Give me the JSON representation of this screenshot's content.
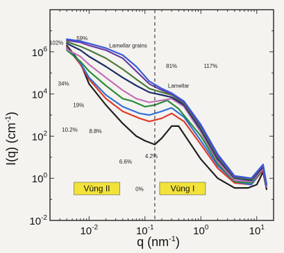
{
  "chart_data": {
    "type": "line",
    "log_x": true,
    "log_y": true,
    "xlabel": "q (nm",
    "xlabel_sup": "-1",
    "xlabel_end": ")",
    "ylabel": "I(q) (cm",
    "ylabel_sup": "-1",
    "ylabel_end": ")",
    "xlim": [
      0.002,
      20
    ],
    "ylim": [
      0.01,
      100000000
    ],
    "x_ticks": [
      {
        "value": 0.01,
        "base": "10",
        "exp": "-2"
      },
      {
        "value": 0.1,
        "base": "10",
        "exp": "-1"
      },
      {
        "value": 1,
        "base": "10",
        "exp": "0"
      },
      {
        "value": 10,
        "base": "10",
        "exp": "1"
      }
    ],
    "y_ticks": [
      {
        "value": 0.01,
        "base": "10",
        "exp": "-2"
      },
      {
        "value": 1,
        "base": "10",
        "exp": "0"
      },
      {
        "value": 100,
        "base": "10",
        "exp": "2"
      },
      {
        "value": 10000,
        "base": "10",
        "exp": "4"
      },
      {
        "value": 1000000,
        "base": "10",
        "exp": "6"
      }
    ],
    "divider_q": 0.15,
    "region_labels": [
      {
        "text": "Vùng II",
        "side": "left"
      },
      {
        "text": "Vùng I",
        "side": "right"
      }
    ],
    "annotations": [
      {
        "text": "102%",
        "x": 0.0026,
        "y": 2200000
      },
      {
        "text": "59%",
        "x": 0.0075,
        "y": 3600000
      },
      {
        "text": "Lamellar grains",
        "x": 0.05,
        "y": 1600000
      },
      {
        "text": "81%",
        "x": 0.3,
        "y": 170000
      },
      {
        "text": "117%",
        "x": 1.5,
        "y": 170000
      },
      {
        "text": "34%",
        "x": 0.0035,
        "y": 25000
      },
      {
        "text": "19%",
        "x": 0.0065,
        "y": 2400
      },
      {
        "text": "Lamellar",
        "x": 0.4,
        "y": 20000
      },
      {
        "text": "10.2%",
        "x": 0.0045,
        "y": 160
      },
      {
        "text": "8.8%",
        "x": 0.013,
        "y": 140
      },
      {
        "text": "6.6%",
        "x": 0.045,
        "y": 5
      },
      {
        "text": "4.2%",
        "x": 0.13,
        "y": 9
      },
      {
        "text": "0%",
        "x": 0.08,
        "y": 0.25
      }
    ],
    "series": [
      {
        "color": "#1f1f1f",
        "points": [
          [
            0.004,
            2000000
          ],
          [
            0.007,
            300000
          ],
          [
            0.01,
            30000
          ],
          [
            0.02,
            3000
          ],
          [
            0.04,
            400
          ],
          [
            0.07,
            100
          ],
          [
            0.1,
            60
          ],
          [
            0.15,
            40
          ],
          [
            0.2,
            80
          ],
          [
            0.3,
            300
          ],
          [
            0.4,
            300
          ],
          [
            0.6,
            60
          ],
          [
            1,
            8
          ],
          [
            2,
            1
          ],
          [
            4,
            0.35
          ],
          [
            7,
            0.35
          ],
          [
            10,
            0.5
          ],
          [
            13,
            2
          ],
          [
            15,
            0.3
          ]
        ]
      },
      {
        "color": "#e03a2a",
        "points": [
          [
            0.004,
            1700000
          ],
          [
            0.007,
            250000
          ],
          [
            0.01,
            50000
          ],
          [
            0.02,
            6000
          ],
          [
            0.04,
            1500
          ],
          [
            0.08,
            700
          ],
          [
            0.12,
            500
          ],
          [
            0.2,
            700
          ],
          [
            0.3,
            1200
          ],
          [
            0.5,
            500
          ],
          [
            1,
            40
          ],
          [
            2,
            3
          ],
          [
            4,
            0.6
          ],
          [
            8,
            0.5
          ],
          [
            13,
            2.5
          ],
          [
            15,
            0.4
          ]
        ]
      },
      {
        "color": "#3070d8",
        "points": [
          [
            0.004,
            1500000
          ],
          [
            0.007,
            300000
          ],
          [
            0.01,
            60000
          ],
          [
            0.02,
            9000
          ],
          [
            0.04,
            2500
          ],
          [
            0.08,
            1200
          ],
          [
            0.12,
            1000
          ],
          [
            0.2,
            1500
          ],
          [
            0.3,
            2200
          ],
          [
            0.5,
            800
          ],
          [
            1,
            60
          ],
          [
            2,
            4
          ],
          [
            4,
            0.7
          ],
          [
            8,
            0.5
          ],
          [
            13,
            3
          ],
          [
            15,
            0.4
          ]
        ]
      },
      {
        "color": "#2a8a3a",
        "points": [
          [
            0.004,
            1200000
          ],
          [
            0.007,
            350000
          ],
          [
            0.01,
            120000
          ],
          [
            0.02,
            25000
          ],
          [
            0.04,
            6000
          ],
          [
            0.06,
            4500
          ],
          [
            0.1,
            2500
          ],
          [
            0.15,
            3000
          ],
          [
            0.25,
            5000
          ],
          [
            0.4,
            2000
          ],
          [
            1,
            100
          ],
          [
            2,
            5
          ],
          [
            4,
            0.7
          ],
          [
            8,
            0.6
          ],
          [
            13,
            3
          ],
          [
            15,
            0.4
          ]
        ]
      },
      {
        "color": "#c070b8",
        "points": [
          [
            0.004,
            1300000
          ],
          [
            0.007,
            600000
          ],
          [
            0.01,
            250000
          ],
          [
            0.02,
            60000
          ],
          [
            0.04,
            15000
          ],
          [
            0.07,
            6000
          ],
          [
            0.12,
            4000
          ],
          [
            0.2,
            5000
          ],
          [
            0.3,
            6000
          ],
          [
            0.5,
            2500
          ],
          [
            1,
            150
          ],
          [
            2,
            6
          ],
          [
            4,
            0.8
          ],
          [
            8,
            0.7
          ],
          [
            13,
            3
          ],
          [
            15,
            0.4
          ]
        ]
      },
      {
        "color": "#1a2a6a",
        "points": [
          [
            0.004,
            2500000
          ],
          [
            0.007,
            1200000
          ],
          [
            0.01,
            600000
          ],
          [
            0.02,
            200000
          ],
          [
            0.04,
            60000
          ],
          [
            0.07,
            25000
          ],
          [
            0.12,
            12000
          ],
          [
            0.2,
            9000
          ],
          [
            0.3,
            7000
          ],
          [
            0.5,
            3000
          ],
          [
            1,
            200
          ],
          [
            2,
            8
          ],
          [
            4,
            1
          ],
          [
            8,
            0.8
          ],
          [
            13,
            3.5
          ],
          [
            15,
            0.5
          ]
        ]
      },
      {
        "color": "#4a7a3a",
        "points": [
          [
            0.004,
            3000000
          ],
          [
            0.007,
            1800000
          ],
          [
            0.01,
            1200000
          ],
          [
            0.02,
            500000
          ],
          [
            0.04,
            150000
          ],
          [
            0.07,
            50000
          ],
          [
            0.12,
            18000
          ],
          [
            0.2,
            12000
          ],
          [
            0.3,
            9000
          ],
          [
            0.5,
            3500
          ],
          [
            1,
            250
          ],
          [
            2,
            10
          ],
          [
            4,
            1.1
          ],
          [
            8,
            0.9
          ],
          [
            13,
            4
          ],
          [
            15,
            0.5
          ]
        ]
      },
      {
        "color": "#6a3aa0",
        "points": [
          [
            0.004,
            3500000
          ],
          [
            0.007,
            2800000
          ],
          [
            0.01,
            2000000
          ],
          [
            0.02,
            1200000
          ],
          [
            0.04,
            500000
          ],
          [
            0.07,
            120000
          ],
          [
            0.12,
            30000
          ],
          [
            0.2,
            15000
          ],
          [
            0.3,
            10000
          ],
          [
            0.5,
            4000
          ],
          [
            1,
            300
          ],
          [
            2,
            12
          ],
          [
            4,
            1.2
          ],
          [
            8,
            1
          ],
          [
            13,
            4
          ],
          [
            15,
            0.5
          ]
        ]
      },
      {
        "color": "#3a5ad8",
        "points": [
          [
            0.004,
            4000000
          ],
          [
            0.007,
            3200000
          ],
          [
            0.01,
            2500000
          ],
          [
            0.02,
            1500000
          ],
          [
            0.04,
            700000
          ],
          [
            0.07,
            200000
          ],
          [
            0.12,
            40000
          ],
          [
            0.2,
            18000
          ],
          [
            0.3,
            11000
          ],
          [
            0.5,
            4500
          ],
          [
            1,
            350
          ],
          [
            2,
            14
          ],
          [
            4,
            1.3
          ],
          [
            8,
            1
          ],
          [
            13,
            4.5
          ],
          [
            15,
            0.5
          ]
        ]
      }
    ]
  }
}
